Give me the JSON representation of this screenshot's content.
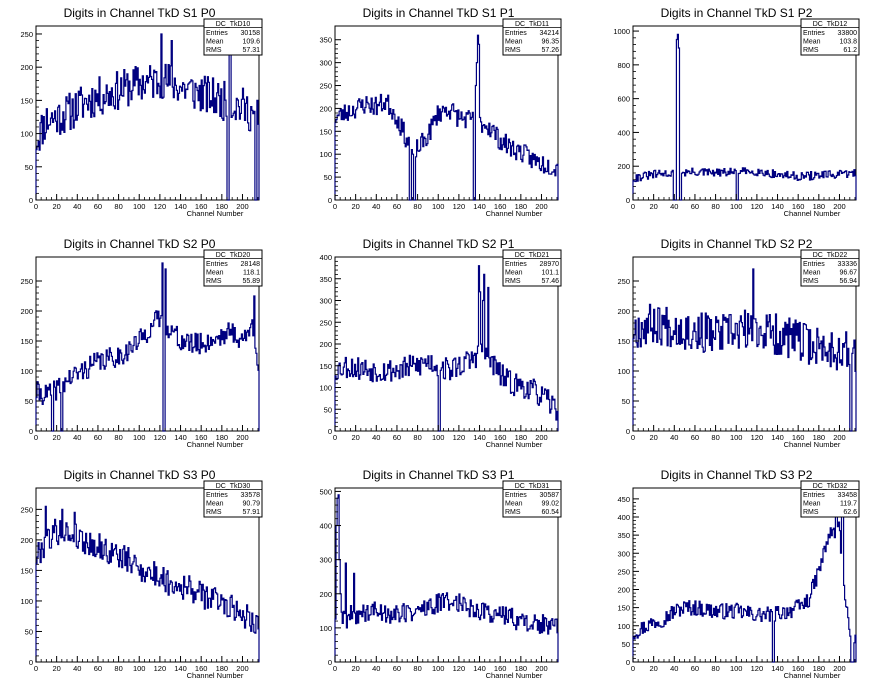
{
  "chart_data": [
    {
      "type": "histogram",
      "title": "Digits in Channel TkD S1 P0",
      "stats": {
        "name": "DC_TkD10",
        "entries": "30158",
        "mean": "109.6",
        "rms": "57.31"
      },
      "xlabel": "Channel Number",
      "ylabel": "",
      "xlim": [
        0,
        216
      ],
      "ylim": [
        0,
        262
      ],
      "yticks": [
        0,
        50,
        100,
        150,
        200,
        250
      ],
      "xticks": [
        0,
        20,
        40,
        60,
        80,
        100,
        120,
        140,
        160,
        180,
        200
      ],
      "anchors": [
        [
          0,
          90
        ],
        [
          10,
          120
        ],
        [
          20,
          125
        ],
        [
          30,
          130
        ],
        [
          40,
          140
        ],
        [
          50,
          150
        ],
        [
          60,
          155
        ],
        [
          70,
          160
        ],
        [
          80,
          165
        ],
        [
          90,
          170
        ],
        [
          100,
          175
        ],
        [
          110,
          178
        ],
        [
          120,
          180
        ],
        [
          130,
          178
        ],
        [
          140,
          170
        ],
        [
          150,
          165
        ],
        [
          160,
          160
        ],
        [
          170,
          155
        ],
        [
          180,
          150
        ],
        [
          190,
          145
        ],
        [
          200,
          140
        ],
        [
          210,
          130
        ],
        [
          216,
          120
        ]
      ],
      "amp": 30,
      "seed": 11,
      "spikes": [
        [
          121,
          250
        ],
        [
          131,
          240
        ],
        [
          185,
          0
        ],
        [
          186,
          0
        ],
        [
          187,
          240
        ],
        [
          188,
          230
        ],
        [
          212,
          0
        ],
        [
          213,
          0
        ],
        [
          214,
          150
        ]
      ]
    },
    {
      "type": "histogram",
      "title": "Digits in Channel TkD S1 P1",
      "stats": {
        "name": "DC_TkD11",
        "entries": "34214",
        "mean": "96.35",
        "rms": "57.26"
      },
      "xlabel": "Channel Number",
      "ylabel": "",
      "xlim": [
        0,
        216
      ],
      "ylim": [
        0,
        380
      ],
      "yticks": [
        0,
        50,
        100,
        150,
        200,
        250,
        300,
        350
      ],
      "xticks": [
        0,
        20,
        40,
        60,
        80,
        100,
        120,
        140,
        160,
        180,
        200
      ],
      "anchors": [
        [
          0,
          180
        ],
        [
          20,
          200
        ],
        [
          30,
          210
        ],
        [
          40,
          205
        ],
        [
          50,
          215
        ],
        [
          60,
          180
        ],
        [
          70,
          130
        ],
        [
          80,
          110
        ],
        [
          90,
          140
        ],
        [
          100,
          190
        ],
        [
          110,
          200
        ],
        [
          120,
          180
        ],
        [
          130,
          175
        ],
        [
          140,
          170
        ],
        [
          150,
          160
        ],
        [
          160,
          130
        ],
        [
          170,
          115
        ],
        [
          180,
          105
        ],
        [
          190,
          90
        ],
        [
          200,
          80
        ],
        [
          210,
          75
        ],
        [
          216,
          70
        ]
      ],
      "amp": 22,
      "seed": 23,
      "spikes": [
        [
          72,
          0
        ],
        [
          73,
          0
        ],
        [
          74,
          110
        ],
        [
          75,
          100
        ],
        [
          76,
          0
        ],
        [
          77,
          0
        ],
        [
          134,
          0
        ],
        [
          135,
          0
        ],
        [
          136,
          250
        ],
        [
          137,
          300
        ],
        [
          138,
          360
        ],
        [
          139,
          340
        ]
      ]
    },
    {
      "type": "histogram",
      "title": "Digits in Channel TkD S1 P2",
      "stats": {
        "name": "DC_TkD12",
        "entries": "33800",
        "mean": "103.8",
        "rms": "61.2"
      },
      "xlabel": "Channel Number",
      "ylabel": "",
      "xlim": [
        0,
        216
      ],
      "ylim": [
        0,
        1030
      ],
      "yticks": [
        0,
        200,
        400,
        600,
        800,
        1000
      ],
      "xticks": [
        0,
        20,
        40,
        60,
        80,
        100,
        120,
        140,
        160,
        180,
        200
      ],
      "anchors": [
        [
          0,
          130
        ],
        [
          20,
          150
        ],
        [
          40,
          160
        ],
        [
          60,
          165
        ],
        [
          80,
          160
        ],
        [
          100,
          165
        ],
        [
          120,
          170
        ],
        [
          140,
          150
        ],
        [
          160,
          140
        ],
        [
          180,
          145
        ],
        [
          200,
          150
        ],
        [
          216,
          160
        ]
      ],
      "amp": 25,
      "seed": 31,
      "spikes": [
        [
          39,
          0
        ],
        [
          40,
          0
        ],
        [
          41,
          0
        ],
        [
          42,
          950
        ],
        [
          43,
          980
        ],
        [
          44,
          900
        ],
        [
          45,
          0
        ],
        [
          46,
          0
        ],
        [
          100,
          0
        ],
        [
          101,
          0
        ]
      ]
    },
    {
      "type": "histogram",
      "title": "Digits in Channel TkD S2 P0",
      "stats": {
        "name": "DC_TkD20",
        "entries": "28148",
        "mean": "118.1",
        "rms": "55.89"
      },
      "xlabel": "Channel Number",
      "ylabel": "",
      "xlim": [
        0,
        216
      ],
      "ylim": [
        0,
        290
      ],
      "yticks": [
        0,
        50,
        100,
        150,
        200,
        250
      ],
      "xticks": [
        0,
        20,
        40,
        60,
        80,
        100,
        120,
        140,
        160,
        180,
        200
      ],
      "anchors": [
        [
          0,
          65
        ],
        [
          10,
          60
        ],
        [
          20,
          70
        ],
        [
          30,
          85
        ],
        [
          40,
          95
        ],
        [
          50,
          105
        ],
        [
          60,
          115
        ],
        [
          70,
          120
        ],
        [
          80,
          125
        ],
        [
          90,
          135
        ],
        [
          100,
          150
        ],
        [
          110,
          170
        ],
        [
          120,
          190
        ],
        [
          130,
          170
        ],
        [
          140,
          150
        ],
        [
          150,
          145
        ],
        [
          160,
          145
        ],
        [
          170,
          150
        ],
        [
          180,
          160
        ],
        [
          190,
          165
        ],
        [
          200,
          150
        ],
        [
          210,
          175
        ],
        [
          216,
          110
        ]
      ],
      "amp": 18,
      "seed": 41,
      "spikes": [
        [
          15,
          0
        ],
        [
          16,
          0
        ],
        [
          24,
          0
        ],
        [
          25,
          0
        ],
        [
          122,
          280
        ],
        [
          123,
          0
        ],
        [
          124,
          0
        ],
        [
          125,
          270
        ],
        [
          211,
          225
        ]
      ]
    },
    {
      "type": "histogram",
      "title": "Digits in Channel TkD S2 P1",
      "stats": {
        "name": "DC_TkD21",
        "entries": "28970",
        "mean": "101.1",
        "rms": "57.46"
      },
      "xlabel": "Channel Number",
      "ylabel": "",
      "xlim": [
        0,
        216
      ],
      "ylim": [
        0,
        400
      ],
      "yticks": [
        0,
        50,
        100,
        150,
        200,
        250,
        300,
        350,
        400
      ],
      "xticks": [
        0,
        20,
        40,
        60,
        80,
        100,
        120,
        140,
        160,
        180,
        200
      ],
      "anchors": [
        [
          0,
          140
        ],
        [
          10,
          150
        ],
        [
          20,
          145
        ],
        [
          40,
          140
        ],
        [
          60,
          140
        ],
        [
          80,
          150
        ],
        [
          90,
          160
        ],
        [
          100,
          150
        ],
        [
          110,
          140
        ],
        [
          120,
          150
        ],
        [
          130,
          160
        ],
        [
          140,
          180
        ],
        [
          150,
          165
        ],
        [
          160,
          130
        ],
        [
          170,
          110
        ],
        [
          180,
          105
        ],
        [
          190,
          95
        ],
        [
          200,
          80
        ],
        [
          210,
          60
        ],
        [
          216,
          50
        ]
      ],
      "amp": 28,
      "seed": 53,
      "spikes": [
        [
          100,
          0
        ],
        [
          101,
          0
        ],
        [
          139,
          380
        ],
        [
          140,
          320
        ],
        [
          143,
          300
        ],
        [
          144,
          360
        ],
        [
          148,
          330
        ]
      ]
    },
    {
      "type": "histogram",
      "title": "Digits in Channel TkD S2 P2",
      "stats": {
        "name": "DC_TkD22",
        "entries": "33336",
        "mean": "96.67",
        "rms": "56.94"
      },
      "xlabel": "Channel Number",
      "ylabel": "",
      "xlim": [
        0,
        216
      ],
      "ylim": [
        0,
        290
      ],
      "yticks": [
        0,
        50,
        100,
        150,
        200,
        250
      ],
      "xticks": [
        0,
        20,
        40,
        60,
        80,
        100,
        120,
        140,
        160,
        180,
        200
      ],
      "anchors": [
        [
          0,
          170
        ],
        [
          20,
          180
        ],
        [
          40,
          175
        ],
        [
          60,
          165
        ],
        [
          80,
          160
        ],
        [
          100,
          165
        ],
        [
          120,
          170
        ],
        [
          140,
          160
        ],
        [
          160,
          150
        ],
        [
          180,
          140
        ],
        [
          200,
          135
        ],
        [
          210,
          130
        ],
        [
          216,
          130
        ]
      ],
      "amp": 35,
      "seed": 67,
      "spikes": [
        [
          116,
          270
        ],
        [
          210,
          0
        ],
        [
          211,
          0
        ]
      ]
    },
    {
      "type": "histogram",
      "title": "Digits in Channel TkD S3 P0",
      "stats": {
        "name": "DC_TkD30",
        "entries": "33578",
        "mean": "90.79",
        "rms": "57.91"
      },
      "xlabel": "Channel Number",
      "ylabel": "",
      "xlim": [
        0,
        216
      ],
      "ylim": [
        0,
        285
      ],
      "yticks": [
        0,
        50,
        100,
        150,
        200,
        250
      ],
      "xticks": [
        0,
        20,
        40,
        60,
        80,
        100,
        120,
        140,
        160,
        180,
        200
      ],
      "anchors": [
        [
          0,
          170
        ],
        [
          10,
          200
        ],
        [
          20,
          215
        ],
        [
          30,
          210
        ],
        [
          40,
          205
        ],
        [
          50,
          195
        ],
        [
          60,
          190
        ],
        [
          70,
          180
        ],
        [
          80,
          175
        ],
        [
          90,
          165
        ],
        [
          100,
          155
        ],
        [
          110,
          145
        ],
        [
          120,
          140
        ],
        [
          130,
          130
        ],
        [
          140,
          125
        ],
        [
          150,
          120
        ],
        [
          160,
          110
        ],
        [
          170,
          105
        ],
        [
          180,
          100
        ],
        [
          190,
          90
        ],
        [
          200,
          80
        ],
        [
          210,
          70
        ],
        [
          216,
          60
        ]
      ],
      "amp": 22,
      "seed": 79,
      "spikes": [
        [
          9,
          255
        ],
        [
          25,
          250
        ],
        [
          37,
          245
        ]
      ]
    },
    {
      "type": "histogram",
      "title": "Digits in Channel TkD S3 P1",
      "stats": {
        "name": "DC_TkD31",
        "entries": "30587",
        "mean": "99.02",
        "rms": "60.54"
      },
      "xlabel": "Channel Number",
      "ylabel": "",
      "xlim": [
        0,
        216
      ],
      "ylim": [
        0,
        510
      ],
      "yticks": [
        0,
        100,
        200,
        300,
        400,
        500
      ],
      "xticks": [
        0,
        20,
        40,
        60,
        80,
        100,
        120,
        140,
        160,
        180,
        200
      ],
      "anchors": [
        [
          0,
          140
        ],
        [
          10,
          130
        ],
        [
          20,
          140
        ],
        [
          40,
          150
        ],
        [
          60,
          140
        ],
        [
          80,
          150
        ],
        [
          100,
          170
        ],
        [
          110,
          180
        ],
        [
          120,
          175
        ],
        [
          140,
          150
        ],
        [
          160,
          140
        ],
        [
          180,
          120
        ],
        [
          200,
          110
        ],
        [
          216,
          100
        ]
      ],
      "amp": 30,
      "seed": 89,
      "spikes": [
        [
          1,
          400
        ],
        [
          2,
          480
        ],
        [
          3,
          490
        ],
        [
          4,
          300
        ],
        [
          5,
          200
        ],
        [
          10,
          290
        ],
        [
          11,
          100
        ],
        [
          18,
          260
        ]
      ]
    },
    {
      "type": "histogram",
      "title": "Digits in Channel TkD S3 P2",
      "stats": {
        "name": "DC_TkD32",
        "entries": "33458",
        "mean": "119.7",
        "rms": "62.6"
      },
      "xlabel": "Channel Number",
      "ylabel": "",
      "xlim": [
        0,
        216
      ],
      "ylim": [
        0,
        480
      ],
      "yticks": [
        0,
        50,
        100,
        150,
        200,
        250,
        300,
        350,
        400,
        450
      ],
      "xticks": [
        0,
        20,
        40,
        60,
        80,
        100,
        120,
        140,
        160,
        180,
        200
      ],
      "anchors": [
        [
          0,
          80
        ],
        [
          20,
          110
        ],
        [
          30,
          120
        ],
        [
          40,
          140
        ],
        [
          50,
          150
        ],
        [
          60,
          150
        ],
        [
          70,
          145
        ],
        [
          80,
          140
        ],
        [
          90,
          140
        ],
        [
          100,
          140
        ],
        [
          110,
          135
        ],
        [
          120,
          130
        ],
        [
          130,
          130
        ],
        [
          140,
          135
        ],
        [
          150,
          140
        ],
        [
          160,
          150
        ],
        [
          170,
          170
        ],
        [
          180,
          250
        ],
        [
          190,
          350
        ],
        [
          200,
          370
        ],
        [
          205,
          200
        ],
        [
          210,
          80
        ],
        [
          216,
          60
        ]
      ],
      "amp": 22,
      "seed": 97,
      "spikes": [
        [
          135,
          0
        ],
        [
          136,
          0
        ],
        [
          196,
          460
        ],
        [
          197,
          460
        ],
        [
          202,
          460
        ],
        [
          203,
          460
        ],
        [
          211,
          0
        ],
        [
          212,
          0
        ],
        [
          213,
          0
        ]
      ]
    }
  ],
  "stats_labels": {
    "entries": "Entries",
    "mean": "Mean",
    "rms": "RMS"
  },
  "colors": {
    "line": "#000080",
    "axis": "#000000",
    "text": "#000000",
    "background": "#ffffff"
  }
}
